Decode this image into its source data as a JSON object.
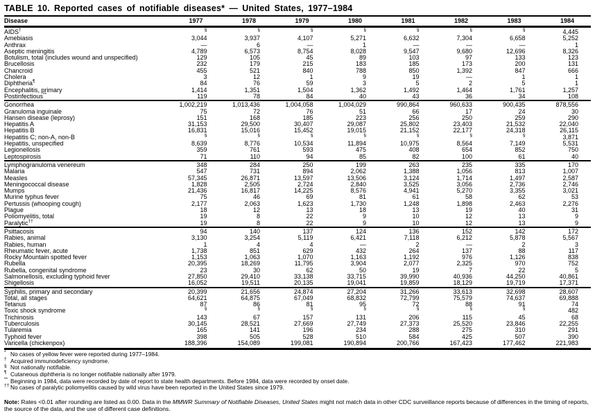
{
  "title": "TABLE 10. Reported cases of notifiable diseases* — United States, 1977–1984",
  "table": {
    "columns": [
      "Disease",
      "1977",
      "1978",
      "1979",
      "1980",
      "1981",
      "1982",
      "1983",
      "1984"
    ],
    "groups": [
      {
        "rows": [
          {
            "disease": "AIDS",
            "sup": "†",
            "indent": false,
            "values": [
              "§",
              "§",
              "§",
              "§",
              "§",
              "§",
              "§",
              "4,445"
            ]
          },
          {
            "disease": "Amebiasis",
            "sup": "",
            "indent": false,
            "values": [
              "3,044",
              "3,937",
              "4,107",
              "5,271",
              "6,632",
              "7,304",
              "6,658",
              "5,252"
            ]
          },
          {
            "disease": "Anthrax",
            "sup": "",
            "indent": false,
            "values": [
              "—",
              "6",
              "—",
              "1",
              "—",
              "—",
              "—",
              "1"
            ]
          },
          {
            "disease": "Aseptic meningitis",
            "sup": "",
            "indent": false,
            "values": [
              "4,789",
              "6,573",
              "8,754",
              "8,028",
              "9,547",
              "9,680",
              "12,696",
              "8,326"
            ]
          },
          {
            "disease": "Botulism, total (includes wound and unspecified)",
            "sup": "",
            "indent": false,
            "values": [
              "129",
              "105",
              "45",
              "89",
              "103",
              "97",
              "133",
              "123"
            ]
          },
          {
            "disease": "Brucellosis",
            "sup": "",
            "indent": false,
            "values": [
              "232",
              "179",
              "215",
              "183",
              "185",
              "173",
              "200",
              "131"
            ]
          },
          {
            "disease": "Chancroid",
            "sup": "",
            "indent": false,
            "values": [
              "455",
              "521",
              "840",
              "788",
              "850",
              "1,392",
              "847",
              "666"
            ]
          },
          {
            "disease": "Cholera",
            "sup": "",
            "indent": false,
            "values": [
              "3",
              "12",
              "1",
              "9",
              "19",
              "—",
              "1",
              "1"
            ]
          },
          {
            "disease": "Diphtheria",
            "sup": "¶",
            "indent": false,
            "values": [
              "84",
              "76",
              "59",
              "3",
              "5",
              "2",
              "5",
              "1"
            ]
          },
          {
            "disease": "Encephalitis, primary",
            "sup": "",
            "indent": false,
            "values": [
              "1,414",
              "1,351",
              "1,504",
              "1,362",
              "1,492",
              "1,464",
              "1,761",
              "1,257"
            ]
          },
          {
            "disease": "Postinfectious",
            "sup": "**",
            "indent": true,
            "values": [
              "119",
              "78",
              "84",
              "40",
              "43",
              "36",
              "34",
              "108"
            ]
          }
        ]
      },
      {
        "rows": [
          {
            "disease": "Gonorrhea",
            "sup": "",
            "indent": false,
            "values": [
              "1,002,219",
              "1,013,436",
              "1,004,058",
              "1,004,029",
              "990,864",
              "960,633",
              "900,435",
              "878,556"
            ]
          },
          {
            "disease": "Granuloma inguinale",
            "sup": "",
            "indent": false,
            "values": [
              "75",
              "72",
              "76",
              "51",
              "66",
              "17",
              "24",
              "30"
            ]
          },
          {
            "disease": "Hansen disease (leprosy)",
            "sup": "",
            "indent": false,
            "values": [
              "151",
              "168",
              "185",
              "223",
              "256",
              "250",
              "259",
              "290"
            ]
          },
          {
            "disease": "Hepatitis A",
            "sup": "",
            "indent": false,
            "values": [
              "31,153",
              "29,500",
              "30,407",
              "29,087",
              "25,802",
              "23,403",
              "21,532",
              "22,040"
            ]
          },
          {
            "disease": "Hepatitis B",
            "sup": "",
            "indent": false,
            "values": [
              "16,831",
              "15,016",
              "15,452",
              "19,015",
              "21,152",
              "22,177",
              "24,318",
              "26,115"
            ]
          },
          {
            "disease": "Hepatitis C; non-A, non-B",
            "sup": "",
            "indent": false,
            "values": [
              "§",
              "§",
              "§",
              "§",
              "§",
              "§",
              "§",
              "3,871"
            ]
          },
          {
            "disease": "Hepatitis, unspecified",
            "sup": "",
            "indent": false,
            "values": [
              "8,639",
              "8,776",
              "10,534",
              "11,894",
              "10,975",
              "8,564",
              "7,149",
              "5,531"
            ]
          },
          {
            "disease": "Legionellosis",
            "sup": "",
            "indent": false,
            "values": [
              "359",
              "761",
              "593",
              "475",
              "408",
              "654",
              "852",
              "750"
            ]
          },
          {
            "disease": "Leptospirosis",
            "sup": "",
            "indent": false,
            "values": [
              "71",
              "110",
              "94",
              "85",
              "82",
              "100",
              "61",
              "40"
            ]
          }
        ]
      },
      {
        "rows": [
          {
            "disease": "Lymphogranuloma venereum",
            "sup": "",
            "indent": false,
            "values": [
              "348",
              "284",
              "250",
              "199",
              "263",
              "235",
              "335",
              "170"
            ]
          },
          {
            "disease": "Malaria",
            "sup": "",
            "indent": false,
            "values": [
              "547",
              "731",
              "894",
              "2,062",
              "1,388",
              "1,056",
              "813",
              "1,007"
            ]
          },
          {
            "disease": "Measles",
            "sup": "",
            "indent": false,
            "values": [
              "57,345",
              "26,871",
              "13,597",
              "13,506",
              "3,124",
              "1,714",
              "1,497",
              "2,587"
            ]
          },
          {
            "disease": "Meningococcal disease",
            "sup": "",
            "indent": false,
            "values": [
              "1,828",
              "2,505",
              "2,724",
              "2,840",
              "3,525",
              "3,056",
              "2,736",
              "2,746"
            ]
          },
          {
            "disease": "Mumps",
            "sup": "",
            "indent": false,
            "values": [
              "21,436",
              "16,817",
              "14,225",
              "8,576",
              "4,941",
              "5,270",
              "3,355",
              "3,021"
            ]
          },
          {
            "disease": "Murine typhus fever",
            "sup": "",
            "indent": false,
            "values": [
              "75",
              "46",
              "69",
              "81",
              "61",
              "58",
              "62",
              "53"
            ]
          },
          {
            "disease": "Pertussis (whooping cough)",
            "sup": "",
            "indent": false,
            "values": [
              "2,177",
              "2,063",
              "1,623",
              "1,730",
              "1,248",
              "1,898",
              "2,463",
              "2,276"
            ]
          },
          {
            "disease": "Plague",
            "sup": "",
            "indent": false,
            "values": [
              "18",
              "12",
              "13",
              "18",
              "13",
              "19",
              "40",
              "31"
            ]
          },
          {
            "disease": "Poliomyelitis, total",
            "sup": "",
            "indent": false,
            "values": [
              "19",
              "8",
              "22",
              "9",
              "10",
              "12",
              "13",
              "9"
            ]
          },
          {
            "disease": "Paralytic",
            "sup": "††",
            "indent": true,
            "values": [
              "19",
              "8",
              "22",
              "9",
              "10",
              "12",
              "13",
              "9"
            ]
          }
        ]
      },
      {
        "rows": [
          {
            "disease": "Psittacosis",
            "sup": "",
            "indent": false,
            "values": [
              "94",
              "140",
              "137",
              "124",
              "136",
              "152",
              "142",
              "172"
            ]
          },
          {
            "disease": "Rabies, animal",
            "sup": "",
            "indent": false,
            "values": [
              "3,130",
              "3,254",
              "5,119",
              "6,421",
              "7,118",
              "6,212",
              "5,878",
              "5,567"
            ]
          },
          {
            "disease": "Rabies, human",
            "sup": "",
            "indent": false,
            "values": [
              "1",
              "4",
              "4",
              "—",
              "2",
              "—",
              "2",
              "3"
            ]
          },
          {
            "disease": "Rheumatic fever, acute",
            "sup": "",
            "indent": false,
            "values": [
              "1,738",
              "851",
              "629",
              "432",
              "264",
              "137",
              "88",
              "117"
            ]
          },
          {
            "disease": "Rocky Mountain spotted fever",
            "sup": "",
            "indent": false,
            "values": [
              "1,153",
              "1,063",
              "1,070",
              "1,163",
              "1,192",
              "976",
              "1,126",
              "838"
            ]
          },
          {
            "disease": "Rubella",
            "sup": "",
            "indent": false,
            "values": [
              "20,395",
              "18,269",
              "11,795",
              "3,904",
              "2,077",
              "2,325",
              "970",
              "752"
            ]
          },
          {
            "disease": "Rubella, congenital syndrome",
            "sup": "",
            "indent": false,
            "values": [
              "23",
              "30",
              "62",
              "50",
              "19",
              "7",
              "22",
              "5"
            ]
          },
          {
            "disease": "Salmonellosis, excluding typhoid fever",
            "sup": "",
            "indent": false,
            "values": [
              "27,850",
              "29,410",
              "33,138",
              "33,715",
              "39,990",
              "40,936",
              "44,250",
              "40,861"
            ]
          },
          {
            "disease": "Shigellosis",
            "sup": "",
            "indent": false,
            "values": [
              "16,052",
              "19,511",
              "20,135",
              "19,041",
              "19,859",
              "18,129",
              "19,719",
              "17,371"
            ]
          }
        ]
      },
      {
        "rows": [
          {
            "disease": "Syphilis, primary and secondary",
            "sup": "",
            "indent": false,
            "values": [
              "20,399",
              "21,656",
              "24,874",
              "27,204",
              "31,266",
              "33,613",
              "32,698",
              "28,607"
            ]
          },
          {
            "disease": "Total, all stages",
            "sup": "",
            "indent": true,
            "values": [
              "64,621",
              "64,875",
              "67,049",
              "68,832",
              "72,799",
              "75,579",
              "74,637",
              "69,888"
            ]
          },
          {
            "disease": "Tetanus",
            "sup": "",
            "indent": false,
            "values": [
              "87",
              "86",
              "81",
              "95",
              "72",
              "88",
              "91",
              "74"
            ]
          },
          {
            "disease": "Toxic shock syndrome",
            "sup": "",
            "indent": false,
            "values": [
              "§",
              "§",
              "§",
              "§",
              "§",
              "§",
              "§",
              "482"
            ]
          },
          {
            "disease": "Trichinosis",
            "sup": "",
            "indent": false,
            "values": [
              "143",
              "67",
              "157",
              "131",
              "206",
              "115",
              "45",
              "68"
            ]
          },
          {
            "disease": "Tuberculosis",
            "sup": "",
            "indent": false,
            "values": [
              "30,145",
              "28,521",
              "27,669",
              "27,749",
              "27,373",
              "25,520",
              "23,846",
              "22,255"
            ]
          },
          {
            "disease": "Tularemia",
            "sup": "",
            "indent": false,
            "values": [
              "165",
              "141",
              "196",
              "234",
              "288",
              "275",
              "310",
              "291"
            ]
          },
          {
            "disease": "Typhoid fever",
            "sup": "",
            "indent": false,
            "values": [
              "398",
              "505",
              "528",
              "510",
              "584",
              "425",
              "507",
              "390"
            ]
          },
          {
            "disease": "Varicella (chickenpox)",
            "sup": "",
            "indent": false,
            "values": [
              "188,396",
              "154,089",
              "199,081",
              "190,894",
              "200,766",
              "167,423",
              "177,462",
              "221,983"
            ]
          }
        ]
      }
    ]
  },
  "footnotes": [
    {
      "marker": "*",
      "text": "No cases of yellow fever were reported during 1977–1984."
    },
    {
      "marker": "†",
      "text": "Acquired immunodeficiency syndrome."
    },
    {
      "marker": "§",
      "text": "Not nationally notifiable."
    },
    {
      "marker": "¶",
      "text": "Cutaneous diphtheria is no longer notifiable nationally after 1979."
    },
    {
      "marker": "**",
      "text": "Beginning in 1984, data were recorded by date of report to state health departments. Before 1984, data were recorded by onset date."
    },
    {
      "marker": "††",
      "text": "No cases of paralytic poliomyelitis caused by wild virus have been reported in the United States since 1979."
    }
  ],
  "note": {
    "label": "Note:",
    "before": " Rates <0.01 after rounding are listed as 0.00. Data in the ",
    "italic": "MMWR Summary of Notifiable Diseases, United States",
    "after": " might not match data in other CDC surveillance reports because of differences in the timing of reports, the source of the data, and the use of different case definitions."
  }
}
